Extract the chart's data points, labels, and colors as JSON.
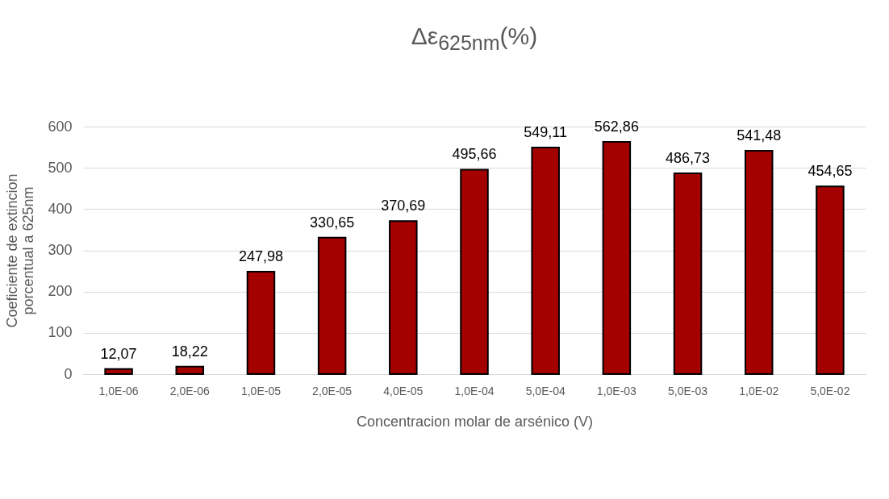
{
  "chart_data": {
    "type": "bar",
    "title": "Δε$_{625nm}$(%)",
    "xlabel": "Concentracion molar de arsénico (V)",
    "ylabel": "Coeficiente de extincion porcentual a 625nm",
    "categories": [
      "1,0E-06",
      "2,0E-06",
      "1,0E-05",
      "2,0E-05",
      "4,0E-05",
      "1,0E-04",
      "5,0E-04",
      "1,0E-03",
      "5,0E-03",
      "1,0E-02",
      "5,0E-02"
    ],
    "values": [
      12.07,
      18.22,
      247.98,
      330.65,
      370.69,
      495.66,
      549.11,
      562.86,
      486.73,
      541.48,
      454.65
    ],
    "value_labels": [
      "12,07",
      "18,22",
      "247,98",
      "330,65",
      "370,69",
      "495,66",
      "549,11",
      "562,86",
      "486,73",
      "541,48",
      "454,65"
    ],
    "color": "#a50000",
    "ylim": [
      0,
      600
    ],
    "yticks": [
      0,
      100,
      200,
      300,
      400,
      500,
      600
    ],
    "grid": "y"
  }
}
